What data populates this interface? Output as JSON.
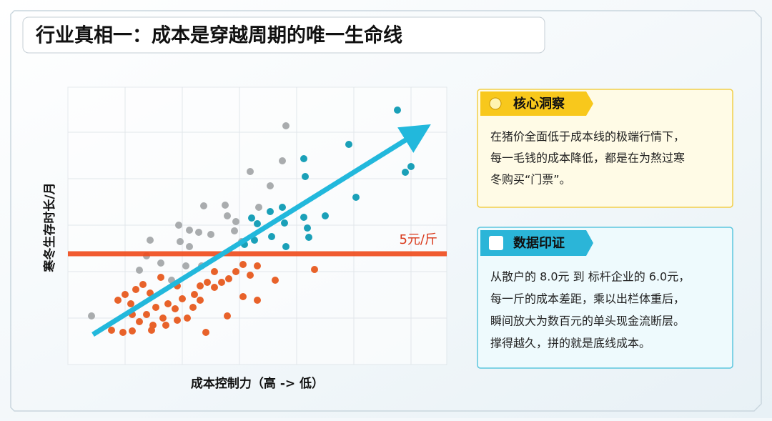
{
  "title": "行业真相一：成本是穿越周期的唯一生命线",
  "chart": {
    "y_label": "寒冬生存时长/月",
    "x_label": "成本控制力（高 -> 低）",
    "threshold_label": "5元/斤"
  },
  "insight": {
    "title": "核心洞察",
    "lines": [
      "在猪价全面低于成本线的极端行情下，",
      "每一毛钱的成本降低，都是在为熬过寒",
      "冬购买“门票”。"
    ]
  },
  "evidence": {
    "title": "数据印证",
    "lines": [
      "从散户的 8.0元 到 标杆企业的 6.0元，",
      "每一斤的成本差距，乘以出栏体重后，",
      "瞬间放大为数百元的单头现金流断层。",
      "撑得越久，拼的就是底线成本。"
    ]
  }
}
